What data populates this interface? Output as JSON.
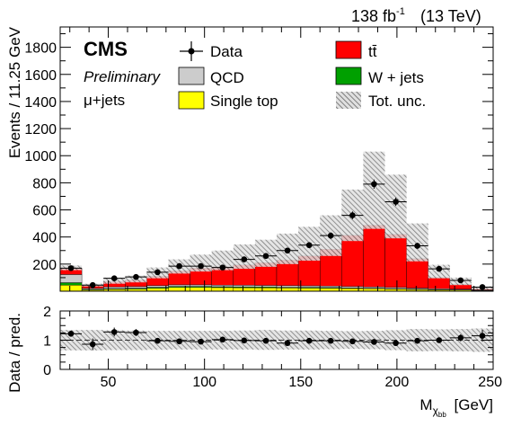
{
  "header": {
    "lumi": "138 fb",
    "lumi_exp": "-1",
    "energy": "(13 TeV)"
  },
  "labels": {
    "experiment": "CMS",
    "status": "Preliminary",
    "channel": "μ+jets"
  },
  "legend": {
    "data": "Data",
    "ttbar": "tt̄",
    "qcd": "QCD",
    "wjets": "W + jets",
    "single_top": "Single top",
    "tot_unc": "Tot. unc."
  },
  "colors": {
    "ttbar": "#ff0000",
    "qcd": "#cccccc",
    "wjets": "#00a000",
    "single_top": "#ffff00",
    "unc_band": "#888888",
    "data": "#000000"
  },
  "chart_data": [
    {
      "type": "bar",
      "stacked": true,
      "bin_edges": [
        25,
        36.25,
        47.5,
        58.75,
        70,
        81.25,
        92.5,
        103.75,
        115,
        126.25,
        137.5,
        148.75,
        160,
        171.25,
        182.5,
        193.75,
        205,
        216.25,
        227.5,
        238.75,
        250
      ],
      "xlim": [
        25,
        250
      ],
      "ylim": [
        0,
        1950
      ],
      "xlabel": "M",
      "xlabel_sub": "χ",
      "xlabel_subsub": "bb",
      "xlabel_unit": "[GeV]",
      "ylabel": "Events / 11.25 GeV",
      "yticks": [
        200,
        400,
        600,
        800,
        1000,
        1200,
        1400,
        1600,
        1800
      ],
      "series": [
        {
          "name": "Single top",
          "values": [
            45,
            10,
            14,
            16,
            22,
            28,
            28,
            27,
            26,
            25,
            24,
            23,
            22,
            20,
            18,
            16,
            12,
            10,
            8,
            5
          ]
        },
        {
          "name": "W + jets",
          "values": [
            18,
            4,
            5,
            6,
            7,
            7,
            7,
            6,
            6,
            6,
            5,
            5,
            5,
            4,
            4,
            3,
            3,
            2,
            2,
            1
          ]
        },
        {
          "name": "QCD",
          "values": [
            60,
            8,
            12,
            12,
            12,
            12,
            12,
            12,
            12,
            12,
            12,
            12,
            11,
            11,
            10,
            9,
            8,
            6,
            5,
            4
          ]
        },
        {
          "name": "tt̄",
          "values": [
            47,
            18,
            39,
            46,
            69,
            103,
            123,
            135,
            150,
            167,
            189,
            220,
            272,
            378,
            455,
            392,
            217,
            82,
            35,
            10
          ]
        }
      ],
      "tot_unc_upper": [
        190,
        55,
        100,
        115,
        175,
        235,
        270,
        300,
        345,
        380,
        425,
        475,
        560,
        750,
        1030,
        860,
        500,
        195,
        100,
        36
      ],
      "tot_unc_lower": [
        155,
        35,
        55,
        65,
        95,
        130,
        145,
        155,
        165,
        180,
        200,
        225,
        260,
        370,
        460,
        390,
        220,
        95,
        45,
        12
      ],
      "data": {
        "name": "Data",
        "x": [
          30.6,
          41.9,
          53.1,
          64.4,
          75.6,
          86.9,
          98.1,
          109.4,
          120.6,
          131.9,
          143.1,
          154.4,
          165.6,
          176.9,
          188.1,
          199.4,
          210.6,
          221.9,
          233.1,
          244.4
        ],
        "y": [
          170,
          45,
          95,
          105,
          140,
          185,
          185,
          175,
          235,
          260,
          300,
          340,
          410,
          560,
          790,
          660,
          335,
          165,
          80,
          30
        ]
      }
    },
    {
      "type": "scatter",
      "xlim": [
        25,
        250
      ],
      "ylim": [
        0,
        2
      ],
      "xlabel": "M",
      "xlabel_sub": "χ",
      "xlabel_subsub": "bb",
      "xlabel_unit": "[GeV]",
      "ylabel": "Data / pred.",
      "xticks": [
        50,
        100,
        150,
        200,
        250
      ],
      "yticks": [
        0,
        1,
        2
      ],
      "band_lower": [
        0.65,
        0.65,
        0.66,
        0.66,
        0.67,
        0.68,
        0.68,
        0.68,
        0.68,
        0.67,
        0.68,
        0.68,
        0.69,
        0.7,
        0.69,
        0.66,
        0.62,
        0.63,
        0.62,
        0.6
      ],
      "band_upper": [
        1.35,
        1.35,
        1.34,
        1.33,
        1.32,
        1.32,
        1.32,
        1.32,
        1.33,
        1.35,
        1.33,
        1.33,
        1.32,
        1.31,
        1.32,
        1.34,
        1.38,
        1.37,
        1.38,
        1.4
      ],
      "data": {
        "x": [
          30.6,
          41.9,
          53.1,
          64.4,
          75.6,
          86.9,
          98.1,
          109.4,
          120.6,
          131.9,
          143.1,
          154.4,
          165.6,
          176.9,
          188.1,
          199.4,
          210.6,
          221.9,
          233.1,
          244.4
        ],
        "y": [
          1.22,
          0.86,
          1.28,
          1.26,
          0.98,
          0.96,
          0.95,
          1.02,
          0.99,
          0.98,
          0.9,
          0.98,
          0.98,
          0.96,
          0.94,
          0.9,
          0.98,
          1.0,
          1.08,
          1.15
        ],
        "yerr": [
          0.1,
          0.2,
          0.15,
          0.12,
          0.08,
          0.06,
          0.06,
          0.06,
          0.05,
          0.05,
          0.05,
          0.05,
          0.04,
          0.03,
          0.03,
          0.03,
          0.04,
          0.06,
          0.12,
          0.2
        ]
      },
      "ref_line": 1
    }
  ]
}
